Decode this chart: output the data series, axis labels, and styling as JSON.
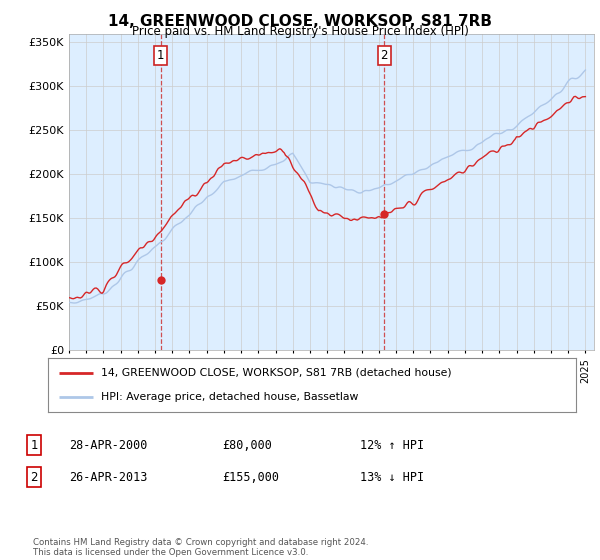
{
  "title": "14, GREENWOOD CLOSE, WORKSOP, S81 7RB",
  "subtitle": "Price paid vs. HM Land Registry's House Price Index (HPI)",
  "ylim": [
    0,
    360000
  ],
  "yticks": [
    0,
    50000,
    100000,
    150000,
    200000,
    250000,
    300000,
    350000
  ],
  "ytick_labels": [
    "£0",
    "£50K",
    "£100K",
    "£150K",
    "£200K",
    "£250K",
    "£300K",
    "£350K"
  ],
  "hpi_color": "#aec7e8",
  "price_color": "#d62728",
  "chart_bg_color": "#ddeeff",
  "sale1_date": 2000.32,
  "sale1_price": 80000,
  "sale2_date": 2013.32,
  "sale2_price": 155000,
  "vline_color": "#cc3333",
  "legend_line1": "14, GREENWOOD CLOSE, WORKSOP, S81 7RB (detached house)",
  "legend_line2": "HPI: Average price, detached house, Bassetlaw",
  "table_row1_num": "1",
  "table_row1_date": "28-APR-2000",
  "table_row1_price": "£80,000",
  "table_row1_hpi": "12% ↑ HPI",
  "table_row2_num": "2",
  "table_row2_date": "26-APR-2013",
  "table_row2_price": "£155,000",
  "table_row2_hpi": "13% ↓ HPI",
  "footer": "Contains HM Land Registry data © Crown copyright and database right 2024.\nThis data is licensed under the Open Government Licence v3.0.",
  "background_color": "#ffffff",
  "grid_color": "#cccccc",
  "xmin": 1995,
  "xmax": 2025.5
}
